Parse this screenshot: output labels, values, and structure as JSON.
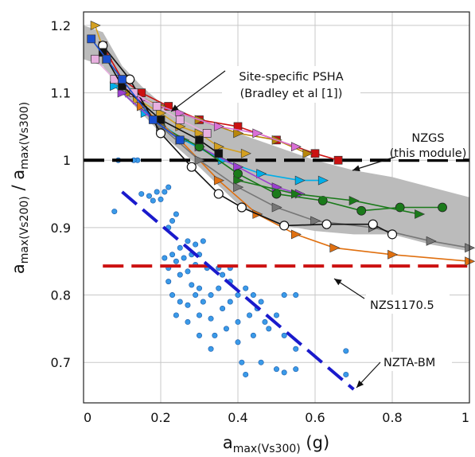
{
  "chart_data": {
    "type": "scatter",
    "xlabel": {
      "main": "a",
      "sub": "max(Vs300)",
      "unit": " (g)"
    },
    "ylabel": {
      "main1": "a",
      "sub1": "max(Vs200)",
      "sep": " / ",
      "main2": "a",
      "sub2": "max(Vs300)"
    },
    "xlim": [
      0,
      1
    ],
    "ylim": [
      0.64,
      1.22
    ],
    "x_ticks": [
      "0",
      "0.2",
      "0.4",
      "0.6",
      "0.8",
      "1"
    ],
    "x_tick_values": [
      0,
      0.2,
      0.4,
      0.6,
      0.8,
      1.0
    ],
    "y_ticks": [
      "0.7",
      "0.8",
      "0.9",
      "1",
      "1.1",
      "1.2"
    ],
    "y_tick_values": [
      0.7,
      0.8,
      0.9,
      1.0,
      1.1,
      1.2
    ],
    "grid": true,
    "reference_lines": [
      {
        "label_lines": [
          "NZGS",
          "(this module)"
        ],
        "y": 1.0,
        "color": "#000000",
        "x_range": [
          0,
          1
        ]
      },
      {
        "label_lines": [
          "NZS1170.5"
        ],
        "y": 0.843,
        "color": "#cc1111",
        "x_range": [
          0.05,
          1
        ]
      }
    ],
    "nzta_bm": {
      "label": "NZTA-BM",
      "color": "#1a1acc",
      "segments": [
        [
          0.1,
          0.953
        ],
        [
          0.7,
          0.66
        ]
      ]
    },
    "site_specific_psha": {
      "label_lines": [
        "Site-specific PSHA",
        "(Bradley et al [1])"
      ],
      "band_color": "#bbbbbb",
      "upper": [
        [
          0.0,
          1.2
        ],
        [
          0.05,
          1.19
        ],
        [
          0.1,
          1.14
        ],
        [
          0.15,
          1.11
        ],
        [
          0.2,
          1.085
        ],
        [
          0.3,
          1.06
        ],
        [
          0.4,
          1.04
        ],
        [
          0.5,
          1.02
        ],
        [
          0.6,
          1.0
        ],
        [
          0.7,
          0.985
        ],
        [
          0.8,
          0.975
        ],
        [
          0.9,
          0.96
        ],
        [
          1.0,
          0.945
        ]
      ],
      "lower": [
        [
          1.0,
          0.865
        ],
        [
          0.9,
          0.875
        ],
        [
          0.8,
          0.89
        ],
        [
          0.7,
          0.89
        ],
        [
          0.6,
          0.895
        ],
        [
          0.5,
          0.905
        ],
        [
          0.4,
          0.935
        ],
        [
          0.3,
          0.99
        ],
        [
          0.2,
          1.04
        ],
        [
          0.1,
          1.1
        ],
        [
          0.05,
          1.14
        ],
        [
          0.0,
          1.15
        ]
      ],
      "series": [
        {
          "color": "#d4a020",
          "marker": "triangle",
          "points": [
            [
              0.03,
              1.2
            ],
            [
              0.06,
              1.15
            ],
            [
              0.1,
              1.12
            ],
            [
              0.14,
              1.09
            ],
            [
              0.2,
              1.07
            ],
            [
              0.25,
              1.05
            ],
            [
              0.3,
              1.04
            ],
            [
              0.35,
              1.02
            ],
            [
              0.42,
              1.01
            ]
          ]
        },
        {
          "color": "#cc1111",
          "marker": "square",
          "points": [
            [
              0.05,
              1.17
            ],
            [
              0.1,
              1.12
            ],
            [
              0.15,
              1.1
            ],
            [
              0.22,
              1.08
            ],
            [
              0.3,
              1.06
            ],
            [
              0.4,
              1.05
            ],
            [
              0.5,
              1.03
            ],
            [
              0.6,
              1.01
            ],
            [
              0.66,
              1.0
            ]
          ]
        },
        {
          "color": "#b8860b",
          "marker": "triangle",
          "points": [
            [
              0.12,
              1.1
            ],
            [
              0.2,
              1.08
            ],
            [
              0.3,
              1.06
            ],
            [
              0.4,
              1.04
            ],
            [
              0.5,
              1.03
            ],
            [
              0.58,
              1.01
            ]
          ]
        },
        {
          "color": "#da70d6",
          "marker": "triangle",
          "points": [
            [
              0.15,
              1.09
            ],
            [
              0.25,
              1.07
            ],
            [
              0.35,
              1.05
            ],
            [
              0.45,
              1.04
            ],
            [
              0.55,
              1.02
            ]
          ]
        },
        {
          "color": "#00aee8",
          "marker": "triangle",
          "points": [
            [
              0.08,
              1.11
            ],
            [
              0.16,
              1.07
            ],
            [
              0.26,
              1.03
            ],
            [
              0.36,
              1.0
            ],
            [
              0.46,
              0.98
            ],
            [
              0.56,
              0.97
            ],
            [
              0.62,
              0.97
            ]
          ]
        },
        {
          "color": "#9b3fd0",
          "marker": "triangle",
          "points": [
            [
              0.1,
              1.1
            ],
            [
              0.2,
              1.05
            ],
            [
              0.3,
              1.02
            ],
            [
              0.4,
              0.99
            ],
            [
              0.5,
              0.96
            ],
            [
              0.56,
              0.95
            ]
          ]
        },
        {
          "color": "#1a7a1a",
          "marker": "circle",
          "points": [
            [
              0.2,
              1.05
            ],
            [
              0.3,
              1.02
            ],
            [
              0.4,
              0.98
            ],
            [
              0.5,
              0.95
            ],
            [
              0.62,
              0.94
            ],
            [
              0.72,
              0.925
            ],
            [
              0.82,
              0.93
            ],
            [
              0.93,
              0.93
            ]
          ]
        },
        {
          "color": "#1a7a1a",
          "marker": "triangle",
          "points": [
            [
              0.4,
              0.97
            ],
            [
              0.55,
              0.95
            ],
            [
              0.7,
              0.94
            ],
            [
              0.87,
              0.92
            ]
          ]
        },
        {
          "color": "#e07010",
          "marker": "triangle",
          "points": [
            [
              0.15,
              1.08
            ],
            [
              0.25,
              1.03
            ],
            [
              0.35,
              0.97
            ],
            [
              0.45,
              0.92
            ],
            [
              0.55,
              0.89
            ],
            [
              0.65,
              0.87
            ],
            [
              0.8,
              0.86
            ],
            [
              1.0,
              0.85
            ]
          ]
        },
        {
          "color": "#777777",
          "marker": "triangle",
          "points": [
            [
              0.2,
              1.05
            ],
            [
              0.3,
              1.0
            ],
            [
              0.4,
              0.96
            ],
            [
              0.5,
              0.93
            ],
            [
              0.6,
              0.91
            ],
            [
              0.75,
              0.9
            ],
            [
              0.9,
              0.88
            ],
            [
              1.0,
              0.87
            ]
          ]
        },
        {
          "color": "#111111",
          "marker": "circle_open",
          "points": [
            [
              0.05,
              1.17
            ],
            [
              0.12,
              1.12
            ],
            [
              0.2,
              1.04
            ],
            [
              0.28,
              0.99
            ],
            [
              0.35,
              0.95
            ],
            [
              0.41,
              0.93
            ],
            [
              0.52,
              0.903
            ],
            [
              0.63,
              0.905
            ],
            [
              0.75,
              0.905
            ],
            [
              0.8,
              0.89
            ]
          ]
        },
        {
          "color": "#e8b0e0",
          "marker": "square",
          "points": [
            [
              0.03,
              1.15
            ],
            [
              0.08,
              1.12
            ],
            [
              0.13,
              1.1
            ],
            [
              0.19,
              1.08
            ],
            [
              0.25,
              1.06
            ],
            [
              0.32,
              1.04
            ]
          ]
        },
        {
          "color": "#111111",
          "marker": "square",
          "points": [
            [
              0.05,
              1.16
            ],
            [
              0.1,
              1.11
            ],
            [
              0.2,
              1.06
            ],
            [
              0.3,
              1.03
            ],
            [
              0.35,
              1.01
            ]
          ]
        },
        {
          "color": "#1a4fd0",
          "marker": "square",
          "points": [
            [
              0.02,
              1.18
            ],
            [
              0.06,
              1.15
            ],
            [
              0.1,
              1.12
            ],
            [
              0.18,
              1.06
            ],
            [
              0.25,
              1.03
            ]
          ]
        }
      ]
    },
    "scatter_points": {
      "color": "#3a9ae8",
      "edge": "#1a5aaa",
      "points": [
        [
          0.08,
          0.924
        ],
        [
          0.15,
          0.95
        ],
        [
          0.17,
          0.947
        ],
        [
          0.19,
          0.953
        ],
        [
          0.2,
          0.942
        ],
        [
          0.21,
          0.953
        ],
        [
          0.22,
          0.9
        ],
        [
          0.23,
          0.91
        ],
        [
          0.24,
          0.92
        ],
        [
          0.21,
          0.855
        ],
        [
          0.23,
          0.86
        ],
        [
          0.22,
          0.84
        ],
        [
          0.24,
          0.85
        ],
        [
          0.25,
          0.87
        ],
        [
          0.26,
          0.855
        ],
        [
          0.27,
          0.88
        ],
        [
          0.28,
          0.86
        ],
        [
          0.29,
          0.875
        ],
        [
          0.3,
          0.86
        ],
        [
          0.31,
          0.88
        ],
        [
          0.22,
          0.82
        ],
        [
          0.25,
          0.83
        ],
        [
          0.27,
          0.835
        ],
        [
          0.28,
          0.815
        ],
        [
          0.29,
          0.845
        ],
        [
          0.3,
          0.81
        ],
        [
          0.32,
          0.84
        ],
        [
          0.23,
          0.8
        ],
        [
          0.25,
          0.79
        ],
        [
          0.27,
          0.785
        ],
        [
          0.29,
          0.8
        ],
        [
          0.31,
          0.79
        ],
        [
          0.33,
          0.8
        ],
        [
          0.35,
          0.81
        ],
        [
          0.36,
          0.83
        ],
        [
          0.38,
          0.84
        ],
        [
          0.24,
          0.77
        ],
        [
          0.27,
          0.76
        ],
        [
          0.3,
          0.77
        ],
        [
          0.33,
          0.765
        ],
        [
          0.36,
          0.78
        ],
        [
          0.38,
          0.79
        ],
        [
          0.4,
          0.8
        ],
        [
          0.42,
          0.81
        ],
        [
          0.44,
          0.8
        ],
        [
          0.46,
          0.79
        ],
        [
          0.3,
          0.74
        ],
        [
          0.34,
          0.74
        ],
        [
          0.37,
          0.75
        ],
        [
          0.4,
          0.76
        ],
        [
          0.43,
          0.77
        ],
        [
          0.45,
          0.78
        ],
        [
          0.47,
          0.76
        ],
        [
          0.5,
          0.77
        ],
        [
          0.52,
          0.8
        ],
        [
          0.55,
          0.8
        ],
        [
          0.4,
          0.73
        ],
        [
          0.44,
          0.74
        ],
        [
          0.48,
          0.75
        ],
        [
          0.52,
          0.74
        ],
        [
          0.55,
          0.72
        ],
        [
          0.46,
          0.7
        ],
        [
          0.5,
          0.69
        ],
        [
          0.41,
          0.7
        ],
        [
          0.42,
          0.682
        ],
        [
          0.52,
          0.685
        ],
        [
          0.55,
          0.69
        ],
        [
          0.68,
          0.717
        ],
        [
          0.68,
          0.682
        ],
        [
          0.14,
          1.0
        ],
        [
          0.13,
          1.0
        ],
        [
          0.09,
          1.0
        ],
        [
          0.22,
          0.96
        ],
        [
          0.18,
          0.94
        ],
        [
          0.35,
          0.84
        ],
        [
          0.38,
          0.82
        ],
        [
          0.33,
          0.72
        ]
      ]
    }
  }
}
